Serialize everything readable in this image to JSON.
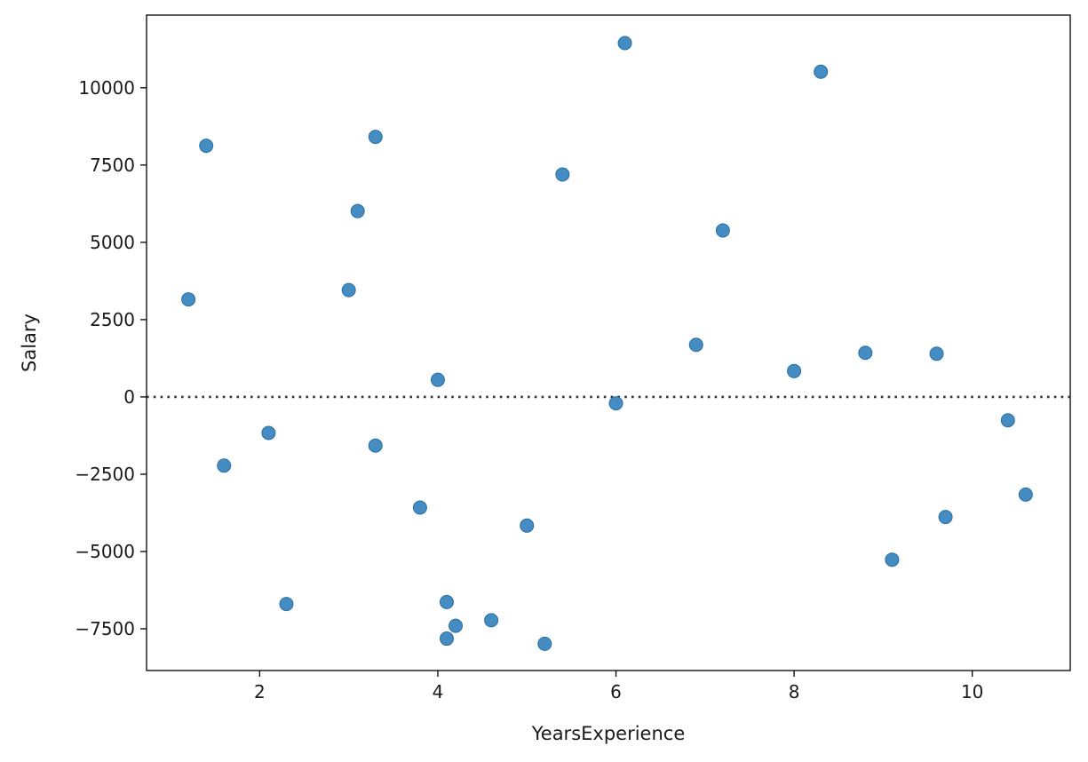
{
  "chart_data": {
    "type": "scatter",
    "title": "",
    "xlabel": "YearsExperience",
    "ylabel": "Salary",
    "xlim": [
      0.73,
      11.1
    ],
    "ylim": [
      -8850,
      12350
    ],
    "xticks": [
      2,
      4,
      6,
      8,
      10
    ],
    "yticks": [
      -7500,
      -5000,
      -2500,
      0,
      2500,
      5000,
      7500,
      10000
    ],
    "xtick_labels": [
      "2",
      "4",
      "6",
      "8",
      "10"
    ],
    "ytick_labels": [
      "−7500",
      "−5000",
      "−2500",
      "0",
      "2500",
      "5000",
      "7500",
      "10000"
    ],
    "reference_line": {
      "y": 0,
      "style": "dotted"
    },
    "grid": false,
    "marker_color": "#3a86bf",
    "marker_edge_color": "#2a6fa3",
    "series": [
      {
        "points": [
          [
            1.2,
            3155
          ],
          [
            1.4,
            8124
          ],
          [
            1.6,
            -2221
          ],
          [
            2.1,
            -1165
          ],
          [
            2.3,
            -6699
          ],
          [
            3.0,
            3455
          ],
          [
            3.1,
            6011
          ],
          [
            3.3,
            8411
          ],
          [
            3.3,
            -1574
          ],
          [
            3.8,
            -3578
          ],
          [
            4.0,
            553
          ],
          [
            4.1,
            -6635
          ],
          [
            4.1,
            -7817
          ],
          [
            4.2,
            -7403
          ],
          [
            4.6,
            -7224
          ],
          [
            5.0,
            -4162
          ],
          [
            5.2,
            -7985
          ],
          [
            5.4,
            7195
          ],
          [
            6.0,
            -207
          ],
          [
            6.1,
            11446
          ],
          [
            6.9,
            1685
          ],
          [
            7.2,
            5384
          ],
          [
            8.0,
            837
          ],
          [
            8.3,
            10519
          ],
          [
            8.8,
            1427
          ],
          [
            9.1,
            -5265
          ],
          [
            9.6,
            1397
          ],
          [
            9.7,
            -3884
          ],
          [
            10.4,
            -756
          ],
          [
            10.6,
            -3158
          ]
        ]
      }
    ]
  }
}
